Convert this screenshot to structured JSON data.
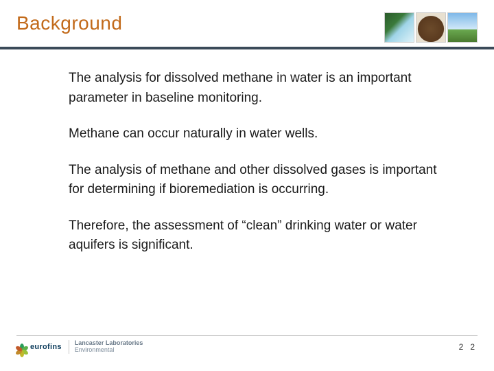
{
  "title": {
    "text": "Background",
    "color": "#c26a1a",
    "fontsize": 28
  },
  "header_images": [
    {
      "name": "water-thumb",
      "css_class": "water"
    },
    {
      "name": "soil-thumb",
      "css_class": "soil"
    },
    {
      "name": "sky-thumb",
      "css_class": "sky"
    }
  ],
  "divider_color": "#3b4a59",
  "paragraphs": [
    "The analysis for dissolved methane in water is an important parameter in baseline monitoring.",
    "Methane can occur naturally in water wells.",
    "The analysis of methane and other dissolved gases is important for determining if bioremediation is occurring.",
    "Therefore, the assessment of “clean” drinking water or water aquifers is significant."
  ],
  "body_style": {
    "fontsize": 19,
    "color": "#1a1a1a",
    "line_height": 1.5
  },
  "footer": {
    "logo_text": "eurofins",
    "logo_petal_colors": [
      "#2a9d5a",
      "#5ab04a",
      "#9ac23a",
      "#c2b82a",
      "#c28a2a",
      "#c25a2a"
    ],
    "logo_text_color": "#0a3a5a",
    "lab_line1": "Lancaster Laboratories",
    "lab_line2": "Environmental",
    "page_numbers": [
      "2",
      "2"
    ],
    "line_color": "#c8c8c8"
  }
}
